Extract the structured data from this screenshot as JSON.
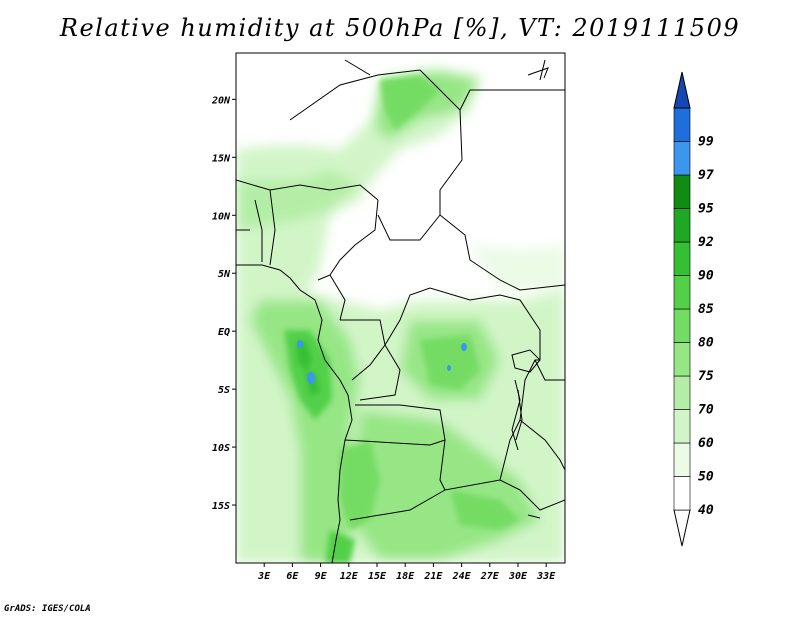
{
  "title": "Relative humidity at 500hPa [%], VT: 2019111509",
  "credit": "GrADS: IGES/COLA",
  "map": {
    "lon_range": [
      0,
      35
    ],
    "lat_range": [
      -20,
      24
    ],
    "lat_ticks": [
      {
        "value": 20,
        "label": "20N"
      },
      {
        "value": 15,
        "label": "15N"
      },
      {
        "value": 10,
        "label": "10N"
      },
      {
        "value": 5,
        "label": "5N"
      },
      {
        "value": 0,
        "label": "EQ"
      },
      {
        "value": -5,
        "label": "5S"
      },
      {
        "value": -10,
        "label": "10S"
      },
      {
        "value": -15,
        "label": "15S"
      }
    ],
    "lon_ticks": [
      {
        "value": 3,
        "label": "3E"
      },
      {
        "value": 6,
        "label": "6E"
      },
      {
        "value": 9,
        "label": "9E"
      },
      {
        "value": 12,
        "label": "12E"
      },
      {
        "value": 15,
        "label": "15E"
      },
      {
        "value": 18,
        "label": "18E"
      },
      {
        "value": 21,
        "label": "21E"
      },
      {
        "value": 24,
        "label": "24E"
      },
      {
        "value": 27,
        "label": "27E"
      },
      {
        "value": 30,
        "label": "30E"
      },
      {
        "value": 33,
        "label": "33E"
      }
    ]
  },
  "colorbar": {
    "levels": [
      {
        "label": "40",
        "color": "#ffffff"
      },
      {
        "label": "50",
        "color": "#ebfbe6"
      },
      {
        "label": "60",
        "color": "#d2f5c8"
      },
      {
        "label": "70",
        "color": "#b4eea6"
      },
      {
        "label": "75",
        "color": "#96e685"
      },
      {
        "label": "80",
        "color": "#74dc64"
      },
      {
        "label": "85",
        "color": "#52d048"
      },
      {
        "label": "90",
        "color": "#34bf34"
      },
      {
        "label": "92",
        "color": "#1ea824"
      },
      {
        "label": "95",
        "color": "#108c14"
      },
      {
        "label": "97",
        "color": "#3c96ee"
      },
      {
        "label": "99",
        "color": "#1e6edc"
      }
    ],
    "top_color": "#1446b4"
  }
}
